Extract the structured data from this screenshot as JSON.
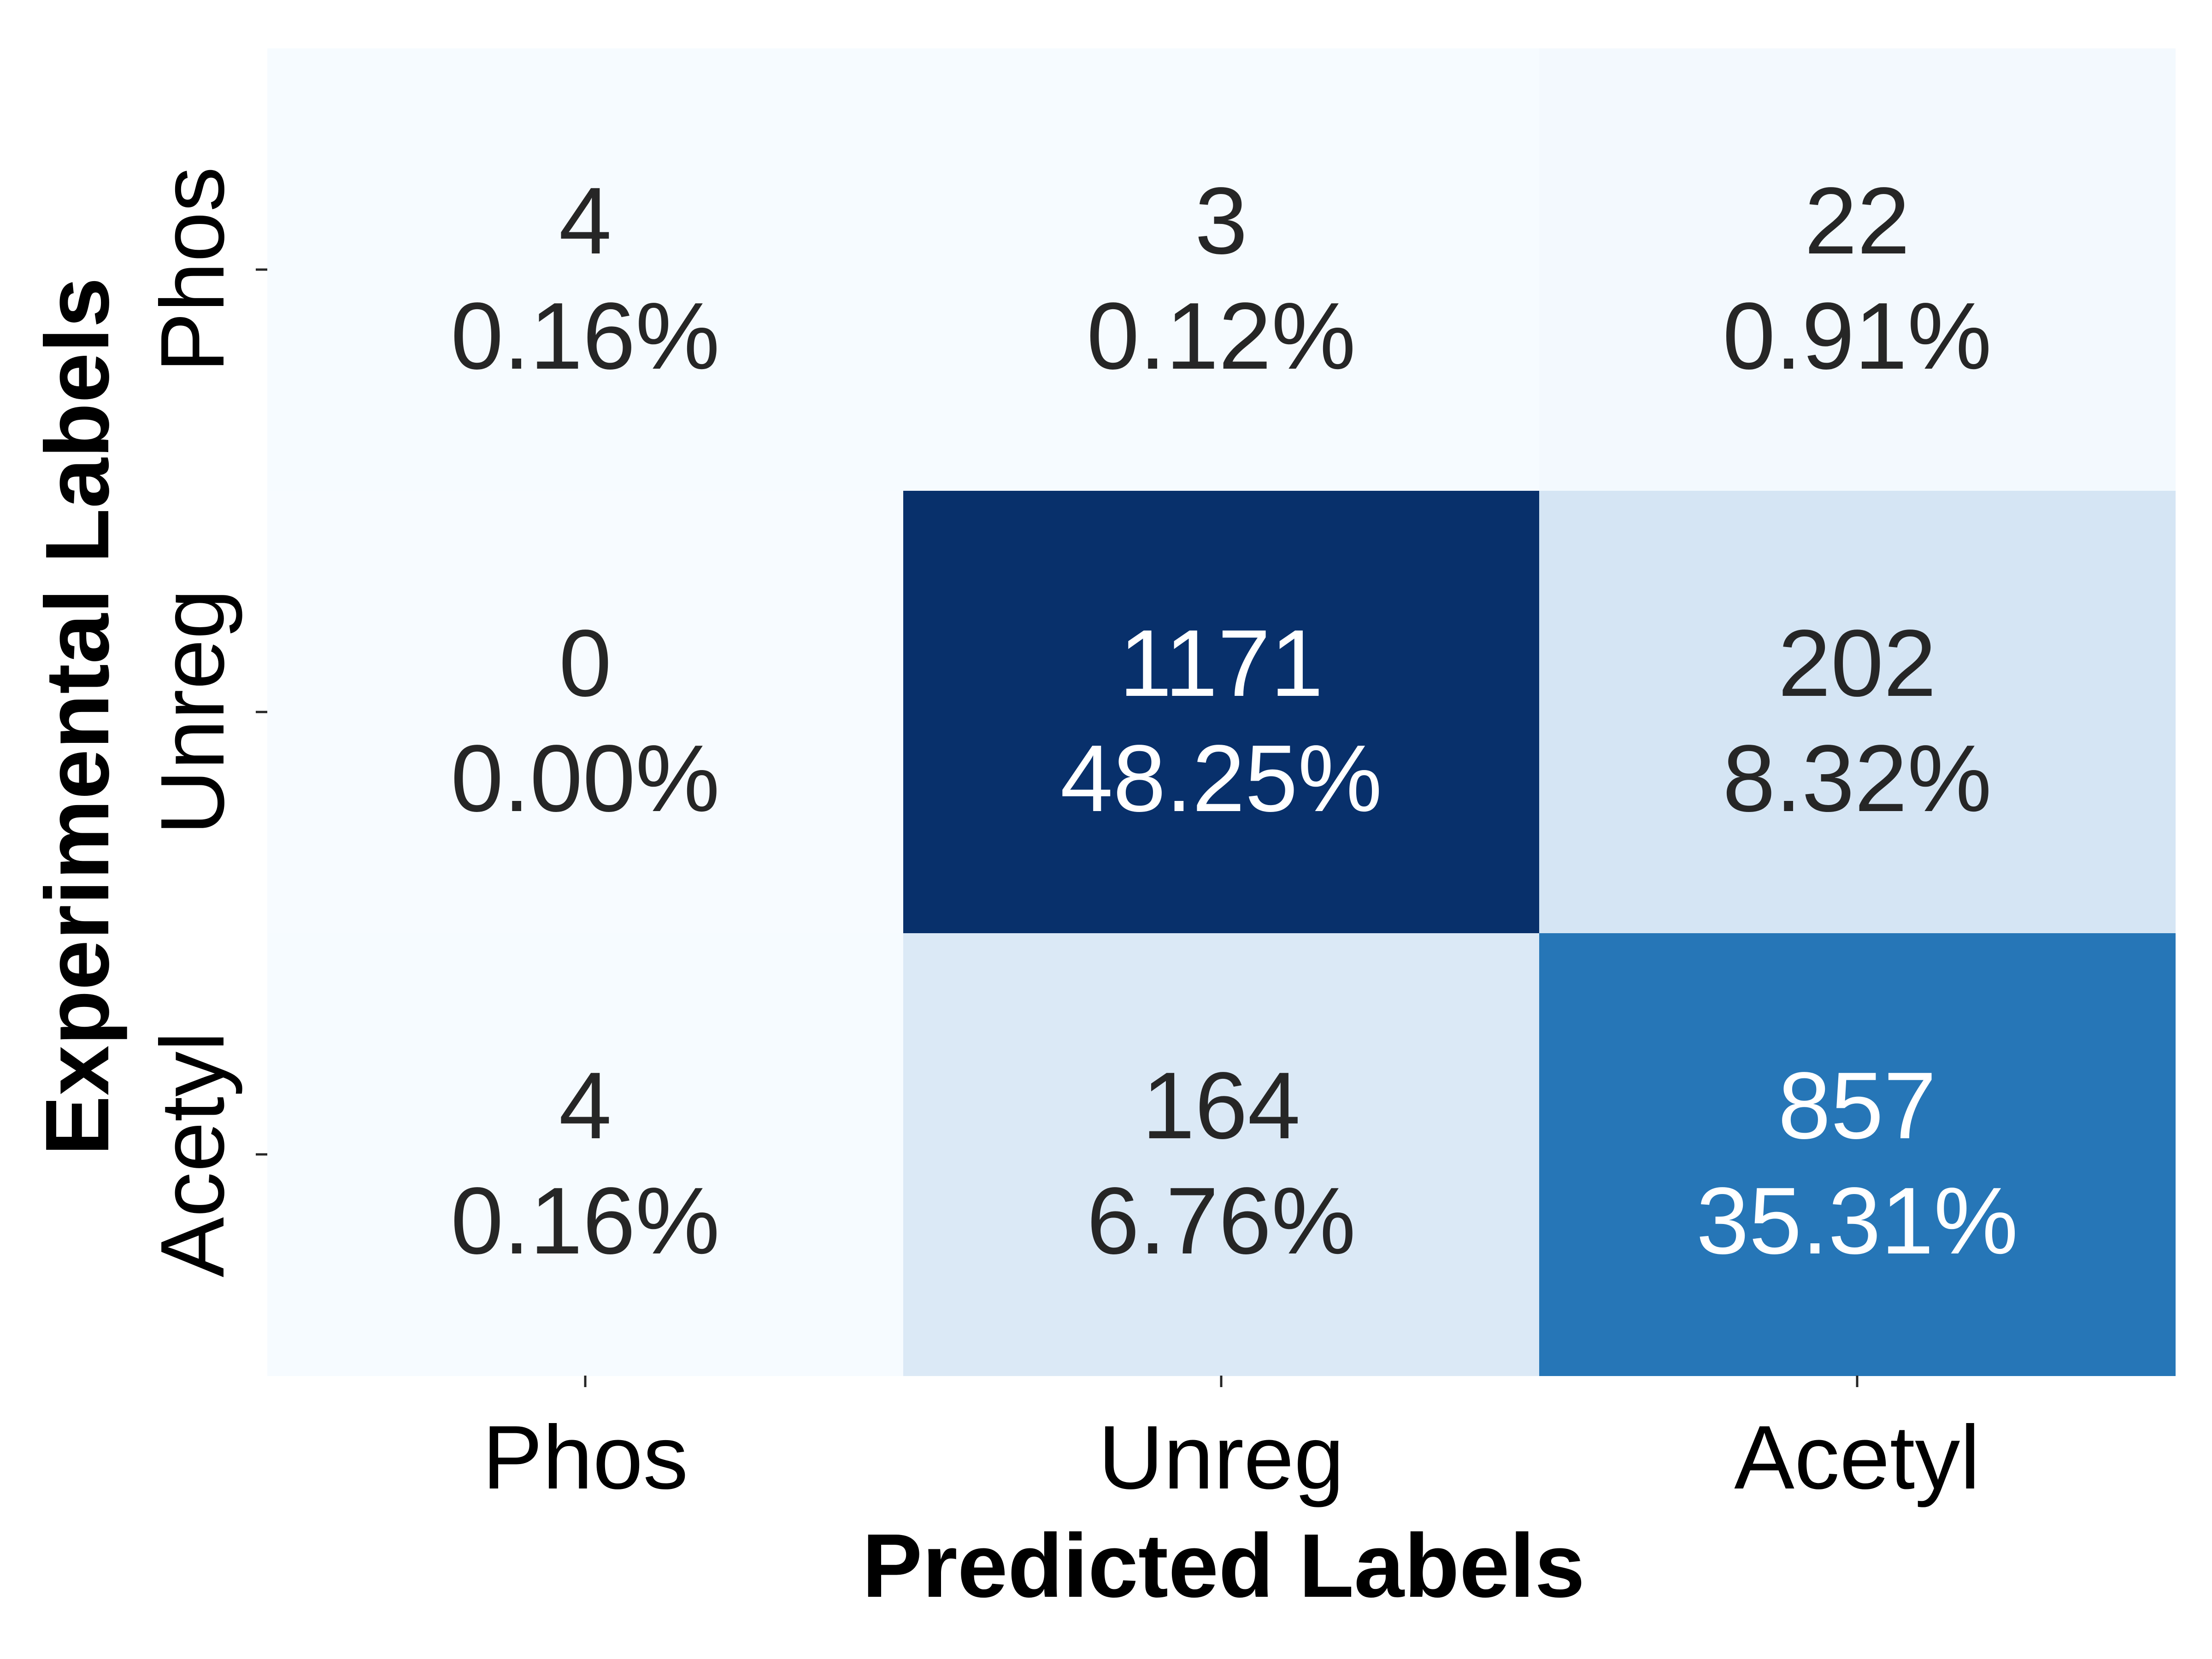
{
  "chart_data": {
    "type": "heatmap",
    "xlabel": "Predicted Labels",
    "ylabel": "Experimental Labels",
    "x_categories": [
      "Phos",
      "Unreg",
      "Acetyl"
    ],
    "y_categories": [
      "Phos",
      "Unreg",
      "Acetyl"
    ],
    "counts": [
      [
        4,
        3,
        22
      ],
      [
        0,
        1171,
        202
      ],
      [
        4,
        164,
        857
      ]
    ],
    "percent_labels": [
      [
        "0.16%",
        "0.12%",
        "0.91%"
      ],
      [
        "0.00%",
        "48.25%",
        "8.32%"
      ],
      [
        "0.16%",
        "6.76%",
        "35.31%"
      ]
    ],
    "colormap": "Blues",
    "colorbar": false,
    "grid": false,
    "colors": {
      "low": "#f7fbff",
      "high": "#08306b",
      "text_dark": "#262626",
      "text_light": "#ffffff"
    }
  }
}
